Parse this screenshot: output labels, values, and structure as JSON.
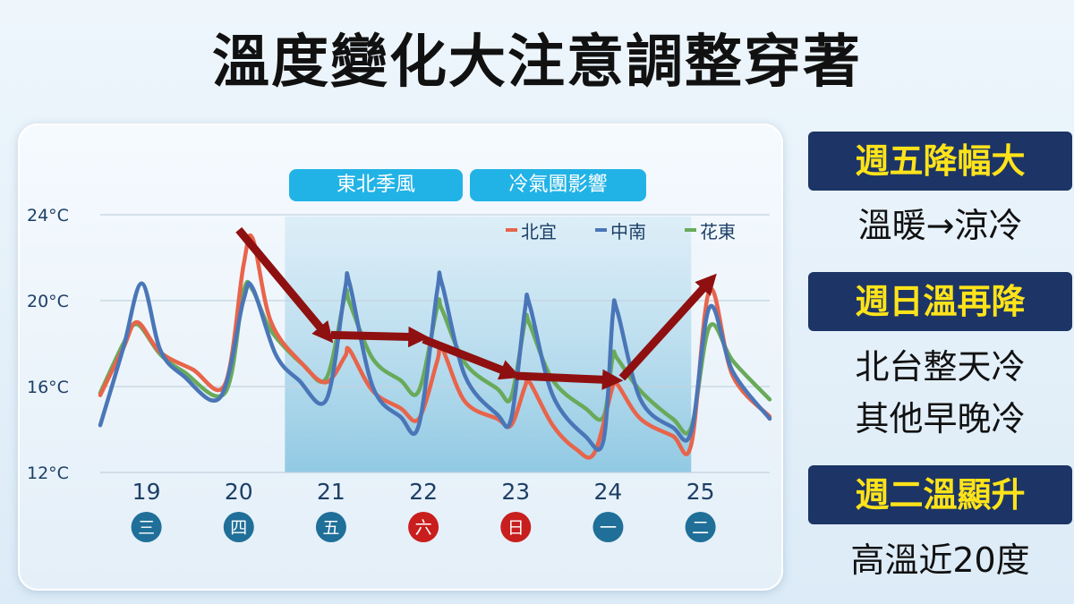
{
  "headline": "溫度變化大注意調整穿著",
  "tags": [
    "東北季風",
    "冷氣團影響"
  ],
  "side_notes": [
    {
      "title": "週五降幅大",
      "lines": [
        "溫暖→涼冷"
      ]
    },
    {
      "title": "週日溫再降",
      "lines": [
        "北台整天冷",
        "其他早晚冷"
      ]
    },
    {
      "title": "週二溫顯升",
      "lines": [
        "高溫近20度"
      ]
    }
  ],
  "colors": {
    "north_yilan": "#e8644a",
    "central_south": "#4a76b8",
    "hualien_taitung": "#69aa5a",
    "arrow": "#8f1010",
    "weekday_badge": "#1f6f99",
    "weekend_badge": "#c81e1e",
    "cold_zone": "#9ccfe6"
  },
  "chart_data": {
    "type": "line",
    "ylim": [
      12,
      24
    ],
    "y_ticks": [
      "24°C",
      "20°C",
      "16°C",
      "12°C"
    ],
    "y_tick_values": [
      24,
      20,
      16,
      12
    ],
    "x_range": [
      18.5,
      25.75
    ],
    "x_ticks": [
      {
        "x": 19,
        "date": "19",
        "weekday": "三",
        "weekend": false
      },
      {
        "x": 20,
        "date": "20",
        "weekday": "四",
        "weekend": false
      },
      {
        "x": 21,
        "date": "21",
        "weekday": "五",
        "weekend": false
      },
      {
        "x": 22,
        "date": "22",
        "weekday": "六",
        "weekend": true
      },
      {
        "x": 23,
        "date": "23",
        "weekday": "日",
        "weekend": true
      },
      {
        "x": 24,
        "date": "24",
        "weekday": "一",
        "weekend": false
      },
      {
        "x": 25,
        "date": "25",
        "weekday": "二",
        "weekend": false
      }
    ],
    "shaded_region": {
      "x_from": 20.5,
      "x_to": 24.9
    },
    "grid": true,
    "legend_position": "top-right",
    "series": [
      {
        "name": "北宜",
        "color": "#e8644a",
        "points": [
          [
            18.5,
            15.6
          ],
          [
            18.75,
            17.8
          ],
          [
            18.9,
            19.0
          ],
          [
            19.15,
            17.6
          ],
          [
            19.5,
            16.8
          ],
          [
            19.85,
            16.1
          ],
          [
            20.05,
            21.6
          ],
          [
            20.15,
            22.9
          ],
          [
            20.35,
            19.0
          ],
          [
            20.7,
            17.0
          ],
          [
            20.95,
            16.2
          ],
          [
            21.15,
            17.4
          ],
          [
            21.2,
            17.7
          ],
          [
            21.45,
            15.8
          ],
          [
            21.75,
            15.0
          ],
          [
            21.95,
            14.5
          ],
          [
            22.15,
            17.2
          ],
          [
            22.2,
            17.8
          ],
          [
            22.45,
            15.3
          ],
          [
            22.8,
            14.5
          ],
          [
            22.95,
            14.2
          ],
          [
            23.1,
            16.0
          ],
          [
            23.15,
            16.2
          ],
          [
            23.4,
            14.2
          ],
          [
            23.65,
            13.1
          ],
          [
            23.85,
            12.9
          ],
          [
            24.05,
            16.0
          ],
          [
            24.1,
            16.1
          ],
          [
            24.35,
            14.5
          ],
          [
            24.7,
            13.7
          ],
          [
            24.9,
            13.3
          ],
          [
            25.1,
            20.5
          ],
          [
            25.35,
            16.5
          ],
          [
            25.75,
            14.6
          ]
        ]
      },
      {
        "name": "中南",
        "color": "#4a76b8",
        "points": [
          [
            18.5,
            14.2
          ],
          [
            18.75,
            17.8
          ],
          [
            18.95,
            20.8
          ],
          [
            19.15,
            17.7
          ],
          [
            19.4,
            16.5
          ],
          [
            19.8,
            15.5
          ],
          [
            20.05,
            20.0
          ],
          [
            20.15,
            20.6
          ],
          [
            20.4,
            17.5
          ],
          [
            20.65,
            16.3
          ],
          [
            20.95,
            15.4
          ],
          [
            21.15,
            20.5
          ],
          [
            21.2,
            20.8
          ],
          [
            21.45,
            16.0
          ],
          [
            21.75,
            14.6
          ],
          [
            21.95,
            14.2
          ],
          [
            22.15,
            20.5
          ],
          [
            22.2,
            20.8
          ],
          [
            22.45,
            16.5
          ],
          [
            22.8,
            14.7
          ],
          [
            22.95,
            14.5
          ],
          [
            23.1,
            19.6
          ],
          [
            23.15,
            19.8
          ],
          [
            23.4,
            15.6
          ],
          [
            23.75,
            13.7
          ],
          [
            23.95,
            13.5
          ],
          [
            24.05,
            19.3
          ],
          [
            24.1,
            19.5
          ],
          [
            24.35,
            15.4
          ],
          [
            24.7,
            14.1
          ],
          [
            24.9,
            13.9
          ],
          [
            25.1,
            19.7
          ],
          [
            25.35,
            16.7
          ],
          [
            25.75,
            14.5
          ]
        ]
      },
      {
        "name": "花東",
        "color": "#69aa5a",
        "points": [
          [
            18.5,
            15.7
          ],
          [
            18.75,
            18.0
          ],
          [
            18.9,
            18.9
          ],
          [
            19.15,
            17.5
          ],
          [
            19.4,
            16.7
          ],
          [
            19.85,
            15.7
          ],
          [
            20.05,
            20.4
          ],
          [
            20.15,
            20.5
          ],
          [
            20.35,
            18.6
          ],
          [
            20.7,
            17.0
          ],
          [
            20.95,
            16.4
          ],
          [
            21.15,
            20.2
          ],
          [
            21.2,
            19.9
          ],
          [
            21.45,
            17.3
          ],
          [
            21.75,
            16.3
          ],
          [
            21.95,
            15.8
          ],
          [
            22.15,
            19.7
          ],
          [
            22.2,
            19.6
          ],
          [
            22.45,
            17.1
          ],
          [
            22.8,
            15.9
          ],
          [
            22.95,
            15.5
          ],
          [
            23.1,
            19.0
          ],
          [
            23.15,
            18.9
          ],
          [
            23.4,
            16.3
          ],
          [
            23.75,
            15.0
          ],
          [
            23.95,
            14.6
          ],
          [
            24.05,
            17.4
          ],
          [
            24.1,
            17.3
          ],
          [
            24.35,
            15.8
          ],
          [
            24.7,
            14.5
          ],
          [
            24.9,
            14.1
          ],
          [
            25.1,
            18.8
          ],
          [
            25.35,
            17.2
          ],
          [
            25.75,
            15.4
          ]
        ]
      }
    ],
    "trend_arrows": [
      {
        "from": [
          20.0,
          23.3
        ],
        "to": [
          20.95,
          18.4
        ]
      },
      {
        "from": [
          21.0,
          18.4
        ],
        "to": [
          21.95,
          18.3
        ]
      },
      {
        "from": [
          22.0,
          18.2
        ],
        "to": [
          22.95,
          16.6
        ]
      },
      {
        "from": [
          23.0,
          16.5
        ],
        "to": [
          24.05,
          16.3
        ]
      },
      {
        "from": [
          24.15,
          16.4
        ],
        "to": [
          25.1,
          20.9
        ]
      }
    ]
  }
}
